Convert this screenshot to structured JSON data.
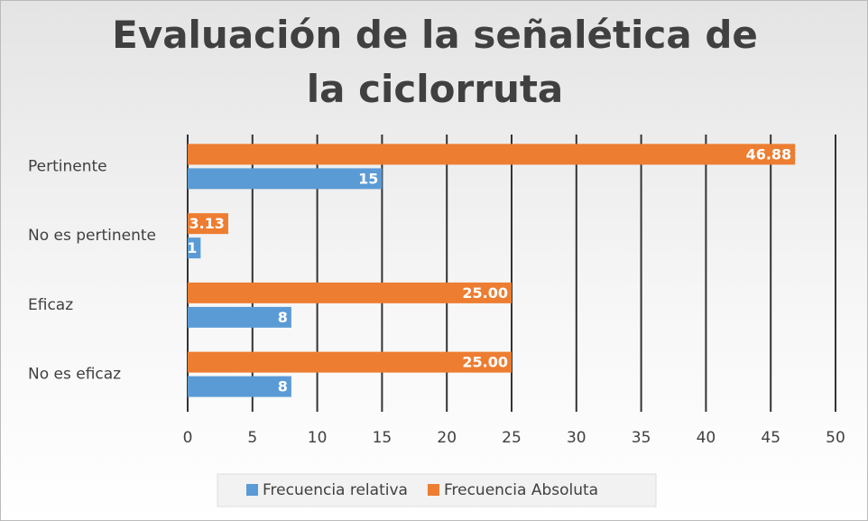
{
  "chart_data": {
    "type": "bar",
    "orientation": "horizontal",
    "title": "Evaluación de la señalética de la ciclorruta",
    "categories": [
      "Pertinente",
      "No es pertinente",
      "Eficaz",
      "No es eficaz"
    ],
    "series": [
      {
        "name": "Frecuencia relativa",
        "color": "#5b9bd5",
        "values": [
          15,
          1,
          8,
          8
        ]
      },
      {
        "name": "Frecuencia Absoluta",
        "color": "#ed7d31",
        "values": [
          46.88,
          3.13,
          25,
          25
        ],
        "value_labels": [
          "46.88",
          "3.13",
          "25.00",
          "25.00"
        ]
      }
    ],
    "xlim": [
      0,
      50
    ],
    "xticks": [
      0,
      5,
      10,
      15,
      20,
      25,
      30,
      35,
      40,
      45,
      50
    ],
    "grid": true,
    "legend": "bottom"
  }
}
